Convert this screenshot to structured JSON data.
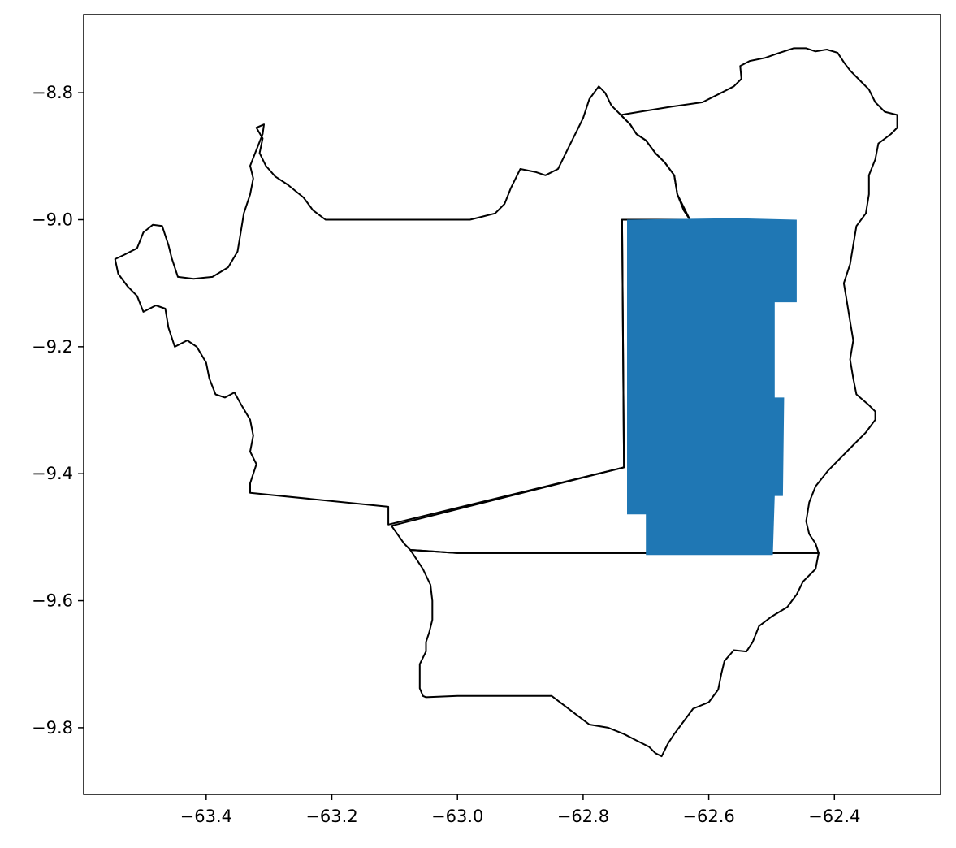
{
  "map": {
    "axes": {
      "x_ticks": [
        -63.4,
        -63.2,
        -63.0,
        -62.8,
        -62.6,
        -62.4
      ],
      "x_tick_labels": [
        "−63.4",
        "−63.2",
        "−63.0",
        "−62.8",
        "−62.6",
        "−62.4"
      ],
      "y_ticks": [
        -8.8,
        -9.0,
        -9.2,
        -9.4,
        -9.6,
        -9.8
      ],
      "y_tick_labels": [
        "−8.8",
        "−9.0",
        "−9.2",
        "−9.4",
        "−9.6",
        "−9.8"
      ],
      "xlim": [
        -63.595,
        -62.231
      ],
      "ylim": [
        -9.905,
        -8.677
      ]
    },
    "styles": {
      "boundary_color": "#000000",
      "fill_color": "#1f77b4",
      "background": "#ffffff"
    },
    "regions": [
      {
        "name": "",
        "role": "boundary",
        "coords": [
          [
            -63.21,
            -9.0
          ],
          [
            -63.23,
            -8.985
          ],
          [
            -63.245,
            -8.965
          ],
          [
            -63.27,
            -8.945
          ],
          [
            -63.29,
            -8.932
          ],
          [
            -63.305,
            -8.915
          ],
          [
            -63.315,
            -8.895
          ],
          [
            -63.31,
            -8.872
          ],
          [
            -63.32,
            -8.855
          ],
          [
            -63.308,
            -8.85
          ],
          [
            -63.31,
            -8.865
          ],
          [
            -63.32,
            -8.89
          ],
          [
            -63.33,
            -8.915
          ],
          [
            -63.325,
            -8.935
          ],
          [
            -63.33,
            -8.96
          ],
          [
            -63.34,
            -8.99
          ],
          [
            -63.345,
            -9.02
          ],
          [
            -63.35,
            -9.05
          ],
          [
            -63.365,
            -9.075
          ],
          [
            -63.39,
            -9.09
          ],
          [
            -63.42,
            -9.093
          ],
          [
            -63.445,
            -9.09
          ],
          [
            -63.455,
            -9.06
          ],
          [
            -63.46,
            -9.04
          ],
          [
            -63.47,
            -9.01
          ],
          [
            -63.485,
            -9.008
          ],
          [
            -63.5,
            -9.02
          ],
          [
            -63.51,
            -9.045
          ],
          [
            -63.53,
            -9.055
          ],
          [
            -63.545,
            -9.062
          ],
          [
            -63.54,
            -9.085
          ],
          [
            -63.525,
            -9.105
          ],
          [
            -63.51,
            -9.12
          ],
          [
            -63.5,
            -9.145
          ],
          [
            -63.48,
            -9.135
          ],
          [
            -63.465,
            -9.14
          ],
          [
            -63.46,
            -9.17
          ],
          [
            -63.45,
            -9.2
          ],
          [
            -63.43,
            -9.19
          ],
          [
            -63.415,
            -9.2
          ],
          [
            -63.4,
            -9.225
          ],
          [
            -63.395,
            -9.25
          ],
          [
            -63.385,
            -9.275
          ],
          [
            -63.37,
            -9.28
          ],
          [
            -63.355,
            -9.272
          ],
          [
            -63.345,
            -9.29
          ],
          [
            -63.33,
            -9.315
          ],
          [
            -63.325,
            -9.34
          ],
          [
            -63.33,
            -9.365
          ],
          [
            -63.32,
            -9.385
          ],
          [
            -63.33,
            -9.415
          ],
          [
            -63.33,
            -9.43
          ],
          [
            -63.11,
            -9.452
          ],
          [
            -63.11,
            -9.48
          ],
          [
            -62.735,
            -9.39
          ],
          [
            -62.738,
            -9.0
          ],
          [
            -62.63,
            -9.0
          ],
          [
            -62.64,
            -8.985
          ],
          [
            -62.65,
            -8.96
          ],
          [
            -62.655,
            -8.93
          ],
          [
            -62.67,
            -8.91
          ],
          [
            -62.685,
            -8.895
          ],
          [
            -62.7,
            -8.875
          ],
          [
            -62.715,
            -8.865
          ],
          [
            -62.725,
            -8.85
          ],
          [
            -62.74,
            -8.835
          ],
          [
            -62.755,
            -8.82
          ],
          [
            -62.765,
            -8.8
          ],
          [
            -62.775,
            -8.79
          ],
          [
            -62.79,
            -8.81
          ],
          [
            -62.8,
            -8.84
          ],
          [
            -62.81,
            -8.86
          ],
          [
            -62.82,
            -8.88
          ],
          [
            -62.83,
            -8.9
          ],
          [
            -62.84,
            -8.92
          ],
          [
            -62.86,
            -8.93
          ],
          [
            -62.875,
            -8.925
          ],
          [
            -62.9,
            -8.92
          ],
          [
            -62.915,
            -8.95
          ],
          [
            -62.925,
            -8.975
          ],
          [
            -62.94,
            -8.99
          ],
          [
            -62.96,
            -8.995
          ],
          [
            -62.98,
            -9.0
          ],
          [
            -63.21,
            -9.0
          ]
        ]
      },
      {
        "name": "",
        "role": "boundary",
        "coords": [
          [
            -62.63,
            -9.0
          ],
          [
            -62.65,
            -8.96
          ],
          [
            -62.655,
            -8.93
          ],
          [
            -62.67,
            -8.91
          ],
          [
            -62.685,
            -8.895
          ],
          [
            -62.7,
            -8.875
          ],
          [
            -62.715,
            -8.865
          ],
          [
            -62.725,
            -8.85
          ],
          [
            -62.74,
            -8.835
          ],
          [
            -62.71,
            -8.83
          ],
          [
            -62.66,
            -8.822
          ],
          [
            -62.61,
            -8.815
          ],
          [
            -62.58,
            -8.8
          ],
          [
            -62.56,
            -8.79
          ],
          [
            -62.548,
            -8.778
          ],
          [
            -62.55,
            -8.758
          ],
          [
            -62.535,
            -8.75
          ],
          [
            -62.51,
            -8.745
          ],
          [
            -62.49,
            -8.738
          ],
          [
            -62.465,
            -8.73
          ],
          [
            -62.445,
            -8.73
          ],
          [
            -62.43,
            -8.735
          ],
          [
            -62.412,
            -8.732
          ],
          [
            -62.395,
            -8.737
          ],
          [
            -62.385,
            -8.752
          ],
          [
            -62.375,
            -8.765
          ],
          [
            -62.36,
            -8.78
          ],
          [
            -62.345,
            -8.795
          ],
          [
            -62.335,
            -8.815
          ],
          [
            -62.32,
            -8.83
          ],
          [
            -62.3,
            -8.835
          ],
          [
            -62.3,
            -8.855
          ],
          [
            -62.31,
            -8.865
          ],
          [
            -62.33,
            -8.88
          ],
          [
            -62.335,
            -8.905
          ],
          [
            -62.345,
            -8.93
          ],
          [
            -62.345,
            -8.96
          ],
          [
            -62.35,
            -8.99
          ],
          [
            -62.365,
            -9.01
          ],
          [
            -62.37,
            -9.04
          ],
          [
            -62.375,
            -9.07
          ],
          [
            -62.385,
            -9.1
          ],
          [
            -62.38,
            -9.13
          ],
          [
            -62.375,
            -9.16
          ],
          [
            -62.37,
            -9.19
          ],
          [
            -62.375,
            -9.22
          ],
          [
            -62.37,
            -9.25
          ],
          [
            -62.365,
            -9.275
          ],
          [
            -62.345,
            -9.292
          ],
          [
            -62.335,
            -9.302
          ],
          [
            -62.335,
            -9.315
          ],
          [
            -62.35,
            -9.335
          ],
          [
            -62.37,
            -9.355
          ],
          [
            -62.39,
            -9.375
          ],
          [
            -62.41,
            -9.395
          ],
          [
            -62.43,
            -9.42
          ],
          [
            -62.44,
            -9.445
          ],
          [
            -62.445,
            -9.475
          ],
          [
            -62.44,
            -9.495
          ],
          [
            -62.43,
            -9.51
          ],
          [
            -62.425,
            -9.525
          ],
          [
            -62.49,
            -9.525
          ],
          [
            -62.52,
            -9.525
          ],
          [
            -62.6,
            -9.525
          ],
          [
            -62.7,
            -9.525
          ],
          [
            -62.8,
            -9.525
          ],
          [
            -62.9,
            -9.525
          ],
          [
            -63.0,
            -9.525
          ],
          [
            -63.075,
            -9.52
          ],
          [
            -63.085,
            -9.51
          ],
          [
            -63.105,
            -9.482
          ],
          [
            -62.735,
            -9.39
          ],
          [
            -62.738,
            -9.0
          ],
          [
            -62.63,
            -9.0
          ]
        ]
      },
      {
        "name": "",
        "role": "boundary",
        "coords": [
          [
            -63.075,
            -9.52
          ],
          [
            -63.0,
            -9.525
          ],
          [
            -62.8,
            -9.525
          ],
          [
            -62.6,
            -9.525
          ],
          [
            -62.425,
            -9.525
          ],
          [
            -62.43,
            -9.55
          ],
          [
            -62.45,
            -9.57
          ],
          [
            -62.46,
            -9.59
          ],
          [
            -62.475,
            -9.61
          ],
          [
            -62.5,
            -9.625
          ],
          [
            -62.52,
            -9.64
          ],
          [
            -62.53,
            -9.665
          ],
          [
            -62.54,
            -9.68
          ],
          [
            -62.56,
            -9.678
          ],
          [
            -62.575,
            -9.695
          ],
          [
            -62.58,
            -9.715
          ],
          [
            -62.585,
            -9.74
          ],
          [
            -62.6,
            -9.76
          ],
          [
            -62.625,
            -9.77
          ],
          [
            -62.64,
            -9.79
          ],
          [
            -62.655,
            -9.81
          ],
          [
            -62.665,
            -9.825
          ],
          [
            -62.675,
            -9.845
          ],
          [
            -62.685,
            -9.84
          ],
          [
            -62.695,
            -9.83
          ],
          [
            -62.715,
            -9.82
          ],
          [
            -62.735,
            -9.81
          ],
          [
            -62.76,
            -9.8
          ],
          [
            -62.79,
            -9.795
          ],
          [
            -62.81,
            -9.78
          ],
          [
            -62.83,
            -9.765
          ],
          [
            -62.85,
            -9.75
          ],
          [
            -62.9,
            -9.75
          ],
          [
            -62.95,
            -9.75
          ],
          [
            -63.0,
            -9.75
          ],
          [
            -63.05,
            -9.752
          ],
          [
            -63.055,
            -9.75
          ],
          [
            -63.06,
            -9.738
          ],
          [
            -63.06,
            -9.72
          ],
          [
            -63.06,
            -9.7
          ],
          [
            -63.05,
            -9.68
          ],
          [
            -63.05,
            -9.665
          ],
          [
            -63.045,
            -9.65
          ],
          [
            -63.04,
            -9.63
          ],
          [
            -63.04,
            -9.61
          ],
          [
            -63.04,
            -9.6
          ],
          [
            -63.043,
            -9.575
          ],
          [
            -63.055,
            -9.55
          ],
          [
            -63.065,
            -9.535
          ],
          [
            -63.075,
            -9.52
          ]
        ]
      },
      {
        "name": "",
        "role": "highlight",
        "coords": [
          [
            -62.73,
            -9.0
          ],
          [
            -62.58,
            -8.998
          ],
          [
            -62.545,
            -8.998
          ],
          [
            -62.46,
            -9.0
          ],
          [
            -62.46,
            -9.13
          ],
          [
            -62.495,
            -9.13
          ],
          [
            -62.495,
            -9.28
          ],
          [
            -62.48,
            -9.28
          ],
          [
            -62.482,
            -9.435
          ],
          [
            -62.495,
            -9.435
          ],
          [
            -62.498,
            -9.528
          ],
          [
            -62.7,
            -9.528
          ],
          [
            -62.7,
            -9.464
          ],
          [
            -62.73,
            -9.464
          ],
          [
            -62.73,
            -9.0
          ]
        ]
      }
    ]
  }
}
